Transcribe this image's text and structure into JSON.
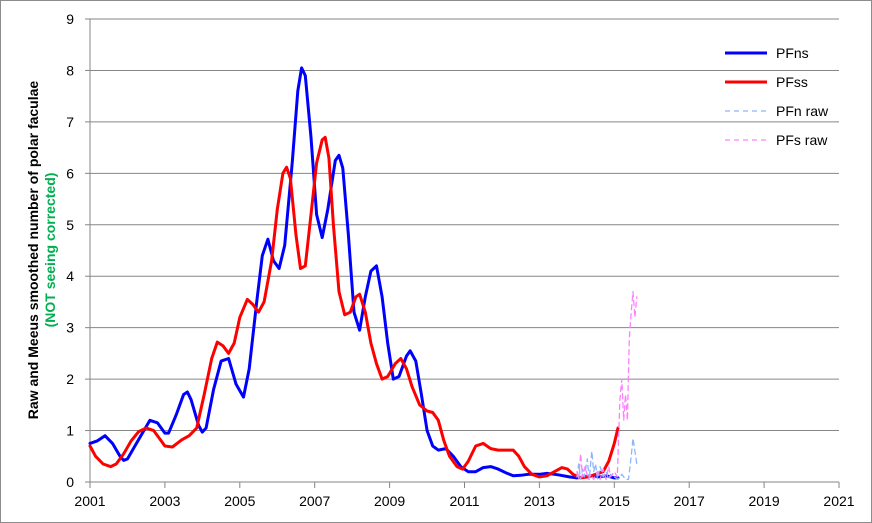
{
  "chart_data": {
    "type": "line",
    "title": "",
    "ylabel": "Raw and Meeus smoothed number of polar faculae",
    "ylabel_note": "(NOT seeing corrected)",
    "xlabel": "",
    "xlim": [
      2001,
      2021
    ],
    "ylim": [
      0,
      9
    ],
    "x_ticks": [
      "2001",
      "2003",
      "2005",
      "2007",
      "2009",
      "2011",
      "2013",
      "2015",
      "2017",
      "2019",
      "2021"
    ],
    "y_ticks": [
      "0",
      "1",
      "2",
      "3",
      "4",
      "5",
      "6",
      "7",
      "8",
      "9"
    ],
    "grid": "horizontal",
    "legend_position": "top-right",
    "colors": {
      "pfns": "#0000ff",
      "pfss": "#ff0000",
      "pfn_raw": "#8fb4ff",
      "pfs_raw": "#ff80ff",
      "ylabel_note": "#00b050"
    },
    "series": [
      {
        "name": "PFns",
        "style": "solid",
        "points": [
          [
            2001.0,
            0.75
          ],
          [
            2001.2,
            0.8
          ],
          [
            2001.4,
            0.9
          ],
          [
            2001.6,
            0.75
          ],
          [
            2001.8,
            0.5
          ],
          [
            2001.9,
            0.42
          ],
          [
            2002.0,
            0.45
          ],
          [
            2002.2,
            0.7
          ],
          [
            2002.4,
            0.95
          ],
          [
            2002.6,
            1.2
          ],
          [
            2002.8,
            1.15
          ],
          [
            2003.0,
            0.95
          ],
          [
            2003.1,
            0.95
          ],
          [
            2003.3,
            1.3
          ],
          [
            2003.5,
            1.7
          ],
          [
            2003.6,
            1.75
          ],
          [
            2003.7,
            1.6
          ],
          [
            2003.9,
            1.1
          ],
          [
            2004.0,
            0.97
          ],
          [
            2004.1,
            1.05
          ],
          [
            2004.3,
            1.8
          ],
          [
            2004.5,
            2.35
          ],
          [
            2004.7,
            2.4
          ],
          [
            2004.9,
            1.9
          ],
          [
            2005.1,
            1.65
          ],
          [
            2005.25,
            2.2
          ],
          [
            2005.45,
            3.5
          ],
          [
            2005.6,
            4.4
          ],
          [
            2005.75,
            4.72
          ],
          [
            2005.9,
            4.3
          ],
          [
            2006.05,
            4.15
          ],
          [
            2006.2,
            4.6
          ],
          [
            2006.4,
            6.2
          ],
          [
            2006.55,
            7.6
          ],
          [
            2006.65,
            8.05
          ],
          [
            2006.75,
            7.9
          ],
          [
            2006.9,
            6.7
          ],
          [
            2007.05,
            5.2
          ],
          [
            2007.2,
            4.75
          ],
          [
            2007.35,
            5.3
          ],
          [
            2007.55,
            6.25
          ],
          [
            2007.65,
            6.35
          ],
          [
            2007.75,
            6.1
          ],
          [
            2007.9,
            4.8
          ],
          [
            2008.05,
            3.3
          ],
          [
            2008.2,
            2.95
          ],
          [
            2008.35,
            3.6
          ],
          [
            2008.5,
            4.1
          ],
          [
            2008.65,
            4.2
          ],
          [
            2008.8,
            3.6
          ],
          [
            2008.95,
            2.7
          ],
          [
            2009.1,
            2.0
          ],
          [
            2009.25,
            2.05
          ],
          [
            2009.45,
            2.45
          ],
          [
            2009.55,
            2.55
          ],
          [
            2009.7,
            2.35
          ],
          [
            2009.85,
            1.7
          ],
          [
            2010.0,
            1.0
          ],
          [
            2010.15,
            0.7
          ],
          [
            2010.3,
            0.62
          ],
          [
            2010.5,
            0.65
          ],
          [
            2010.7,
            0.5
          ],
          [
            2010.9,
            0.3
          ],
          [
            2011.1,
            0.2
          ],
          [
            2011.3,
            0.2
          ],
          [
            2011.5,
            0.28
          ],
          [
            2011.7,
            0.3
          ],
          [
            2011.9,
            0.25
          ],
          [
            2012.1,
            0.18
          ],
          [
            2012.3,
            0.12
          ],
          [
            2012.5,
            0.13
          ],
          [
            2012.7,
            0.15
          ],
          [
            2013.0,
            0.15
          ],
          [
            2013.2,
            0.17
          ],
          [
            2013.5,
            0.14
          ],
          [
            2013.8,
            0.1
          ],
          [
            2014.0,
            0.08
          ],
          [
            2014.2,
            0.1
          ],
          [
            2014.4,
            0.12
          ],
          [
            2014.6,
            0.1
          ],
          [
            2014.8,
            0.12
          ],
          [
            2015.0,
            0.08
          ],
          [
            2015.1,
            0.08
          ]
        ]
      },
      {
        "name": "PFss",
        "style": "solid",
        "points": [
          [
            2001.0,
            0.7
          ],
          [
            2001.15,
            0.5
          ],
          [
            2001.35,
            0.35
          ],
          [
            2001.55,
            0.3
          ],
          [
            2001.7,
            0.35
          ],
          [
            2001.9,
            0.55
          ],
          [
            2002.1,
            0.8
          ],
          [
            2002.3,
            0.98
          ],
          [
            2002.5,
            1.05
          ],
          [
            2002.7,
            1.0
          ],
          [
            2002.85,
            0.85
          ],
          [
            2003.0,
            0.7
          ],
          [
            2003.2,
            0.68
          ],
          [
            2003.45,
            0.82
          ],
          [
            2003.65,
            0.9
          ],
          [
            2003.85,
            1.05
          ],
          [
            2004.05,
            1.7
          ],
          [
            2004.25,
            2.4
          ],
          [
            2004.4,
            2.72
          ],
          [
            2004.55,
            2.65
          ],
          [
            2004.7,
            2.5
          ],
          [
            2004.85,
            2.7
          ],
          [
            2005.0,
            3.2
          ],
          [
            2005.2,
            3.55
          ],
          [
            2005.35,
            3.45
          ],
          [
            2005.5,
            3.3
          ],
          [
            2005.65,
            3.5
          ],
          [
            2005.85,
            4.3
          ],
          [
            2006.0,
            5.3
          ],
          [
            2006.15,
            6.0
          ],
          [
            2006.25,
            6.12
          ],
          [
            2006.35,
            5.9
          ],
          [
            2006.5,
            4.8
          ],
          [
            2006.62,
            4.15
          ],
          [
            2006.75,
            4.2
          ],
          [
            2006.9,
            5.2
          ],
          [
            2007.05,
            6.2
          ],
          [
            2007.2,
            6.65
          ],
          [
            2007.28,
            6.7
          ],
          [
            2007.38,
            6.3
          ],
          [
            2007.5,
            5.0
          ],
          [
            2007.65,
            3.7
          ],
          [
            2007.8,
            3.25
          ],
          [
            2007.95,
            3.3
          ],
          [
            2008.1,
            3.6
          ],
          [
            2008.2,
            3.65
          ],
          [
            2008.35,
            3.3
          ],
          [
            2008.5,
            2.7
          ],
          [
            2008.65,
            2.3
          ],
          [
            2008.8,
            2.0
          ],
          [
            2008.95,
            2.05
          ],
          [
            2009.15,
            2.3
          ],
          [
            2009.3,
            2.4
          ],
          [
            2009.45,
            2.2
          ],
          [
            2009.6,
            1.85
          ],
          [
            2009.8,
            1.5
          ],
          [
            2010.0,
            1.38
          ],
          [
            2010.15,
            1.35
          ],
          [
            2010.3,
            1.2
          ],
          [
            2010.45,
            0.8
          ],
          [
            2010.6,
            0.5
          ],
          [
            2010.8,
            0.3
          ],
          [
            2010.95,
            0.25
          ],
          [
            2011.1,
            0.4
          ],
          [
            2011.3,
            0.7
          ],
          [
            2011.5,
            0.75
          ],
          [
            2011.7,
            0.65
          ],
          [
            2011.9,
            0.62
          ],
          [
            2012.1,
            0.62
          ],
          [
            2012.3,
            0.62
          ],
          [
            2012.45,
            0.5
          ],
          [
            2012.6,
            0.3
          ],
          [
            2012.8,
            0.15
          ],
          [
            2013.0,
            0.1
          ],
          [
            2013.2,
            0.12
          ],
          [
            2013.4,
            0.2
          ],
          [
            2013.6,
            0.28
          ],
          [
            2013.75,
            0.25
          ],
          [
            2013.9,
            0.15
          ],
          [
            2014.1,
            0.08
          ],
          [
            2014.3,
            0.1
          ],
          [
            2014.5,
            0.15
          ],
          [
            2014.7,
            0.2
          ],
          [
            2014.85,
            0.4
          ],
          [
            2015.0,
            0.75
          ],
          [
            2015.1,
            1.05
          ]
        ]
      },
      {
        "name": "PFn raw",
        "style": "dashed",
        "points": [
          [
            2014.0,
            0.1
          ],
          [
            2014.05,
            0.35
          ],
          [
            2014.1,
            0.05
          ],
          [
            2014.15,
            0.25
          ],
          [
            2014.2,
            0.1
          ],
          [
            2014.28,
            0.45
          ],
          [
            2014.33,
            0.05
          ],
          [
            2014.4,
            0.6
          ],
          [
            2014.45,
            0.2
          ],
          [
            2014.5,
            0.35
          ],
          [
            2014.55,
            0.05
          ],
          [
            2014.62,
            0.3
          ],
          [
            2014.7,
            0.1
          ],
          [
            2014.78,
            0.2
          ],
          [
            2014.85,
            0.05
          ],
          [
            2014.9,
            0.15
          ],
          [
            2015.0,
            0.1
          ],
          [
            2015.1,
            0.05
          ],
          [
            2015.2,
            0.15
          ],
          [
            2015.3,
            0.05
          ],
          [
            2015.38,
            0.05
          ],
          [
            2015.45,
            0.5
          ],
          [
            2015.5,
            0.85
          ],
          [
            2015.55,
            0.6
          ],
          [
            2015.6,
            0.35
          ]
        ]
      },
      {
        "name": "PFs raw",
        "style": "dashed",
        "points": [
          [
            2014.0,
            0.2
          ],
          [
            2014.05,
            0.05
          ],
          [
            2014.1,
            0.55
          ],
          [
            2014.15,
            0.1
          ],
          [
            2014.22,
            0.3
          ],
          [
            2014.3,
            0.05
          ],
          [
            2014.38,
            0.15
          ],
          [
            2014.45,
            0.05
          ],
          [
            2014.55,
            0.2
          ],
          [
            2014.62,
            0.05
          ],
          [
            2014.7,
            0.25
          ],
          [
            2014.78,
            0.05
          ],
          [
            2014.85,
            0.3
          ],
          [
            2014.9,
            0.1
          ],
          [
            2015.0,
            0.2
          ],
          [
            2015.08,
            0.1
          ],
          [
            2015.15,
            1.6
          ],
          [
            2015.2,
            2.0
          ],
          [
            2015.25,
            1.2
          ],
          [
            2015.3,
            1.7
          ],
          [
            2015.35,
            1.2
          ],
          [
            2015.4,
            2.8
          ],
          [
            2015.45,
            3.3
          ],
          [
            2015.5,
            3.7
          ],
          [
            2015.55,
            3.2
          ],
          [
            2015.6,
            3.6
          ]
        ]
      }
    ]
  }
}
